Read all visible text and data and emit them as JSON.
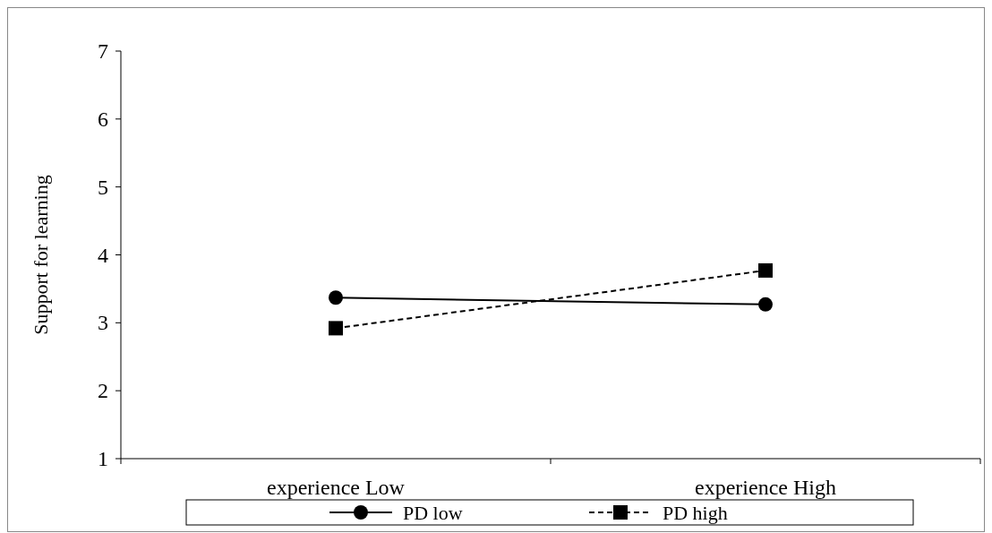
{
  "chart_data": {
    "type": "line",
    "ylabel": "Support for learning",
    "categories": [
      "experience Low",
      "experience High"
    ],
    "series": [
      {
        "name": "PD low",
        "color": "#000000",
        "values": [
          3.37,
          3.27
        ],
        "marker": "circle",
        "line_style": "solid"
      },
      {
        "name": "PD high",
        "color": "#000000",
        "values": [
          2.92,
          3.77
        ],
        "marker": "square",
        "line_style": "dashed"
      }
    ],
    "ylim": [
      1,
      7
    ],
    "yticks": [
      1,
      2,
      3,
      4,
      5,
      6,
      7
    ],
    "legend": "bottom"
  }
}
